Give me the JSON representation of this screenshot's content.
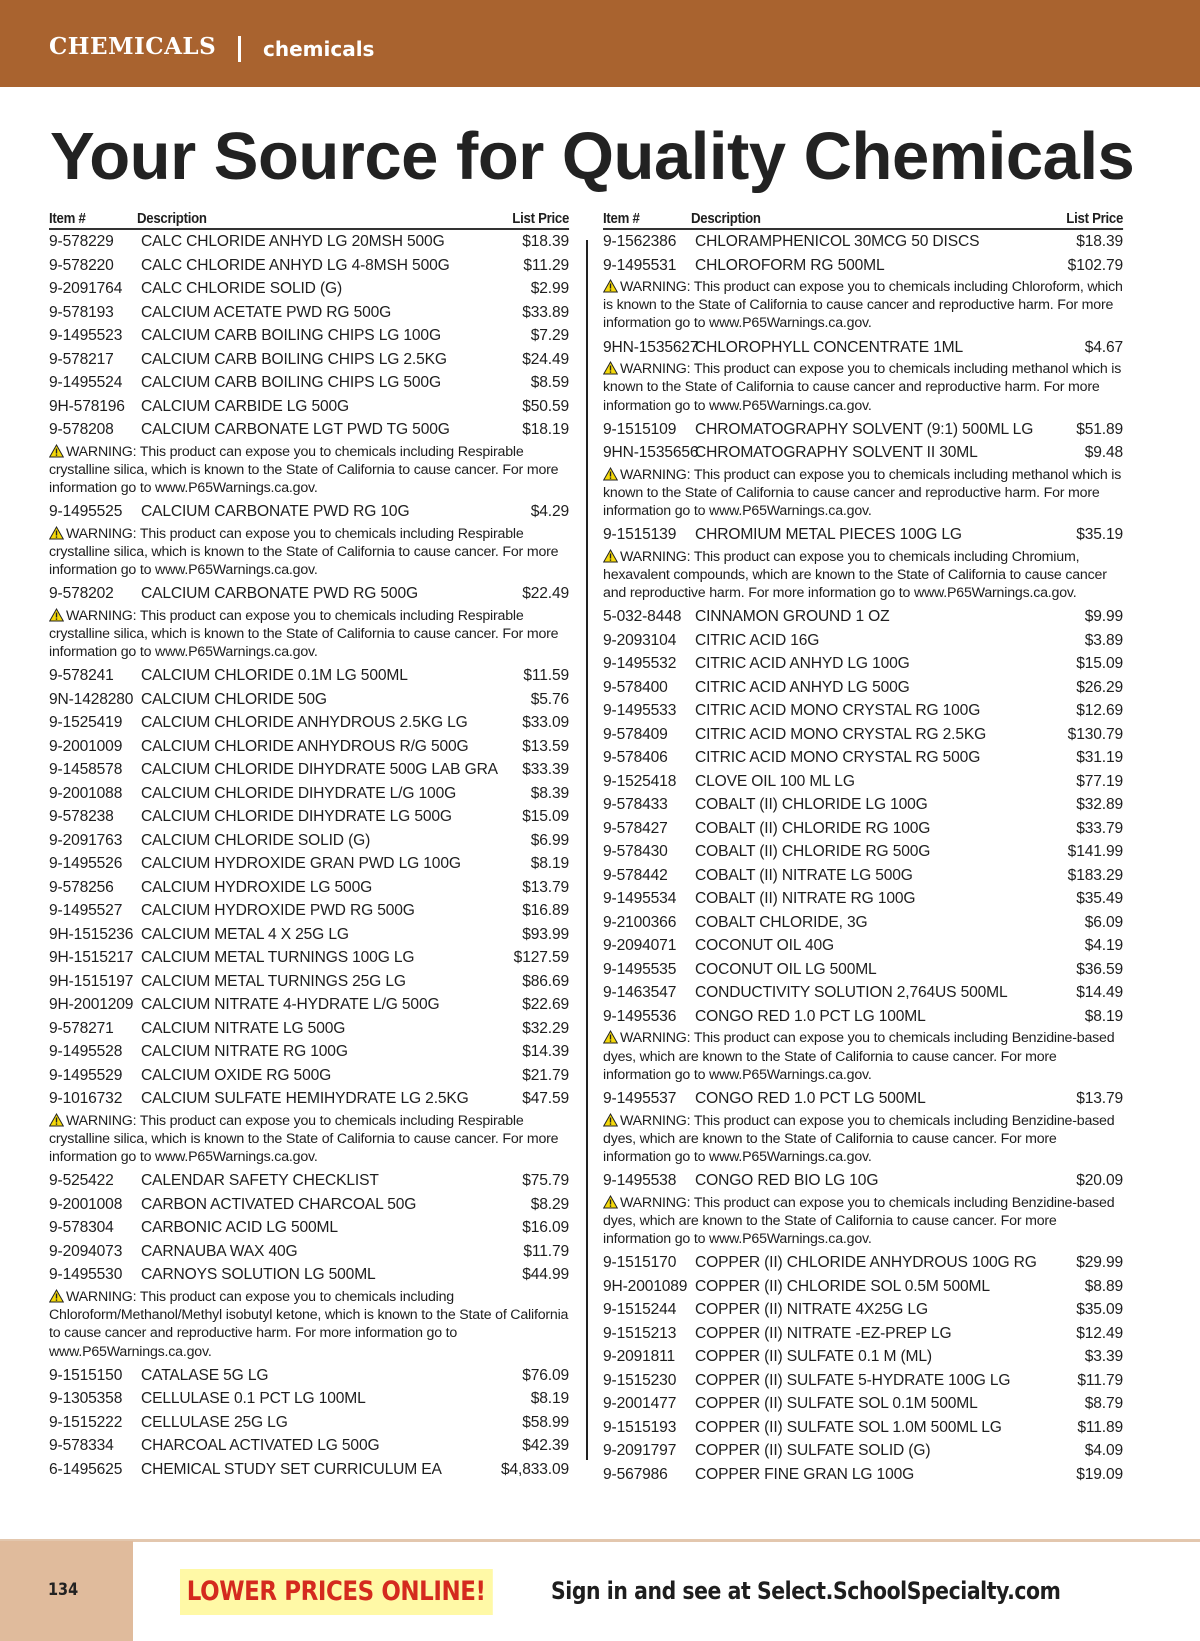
{
  "header": {
    "section": "CHEMICALS",
    "subsection": "chemicals",
    "accent": "#A9632F"
  },
  "title": "Your Source for Quality Chemicals",
  "columns_header": {
    "item": "Item #",
    "description": "Description",
    "price": "List Price"
  },
  "left": [
    {
      "id": "9-578229",
      "desc": "CALC CHLORIDE ANHYD LG 20MSH 500G",
      "price": "$18.39"
    },
    {
      "id": "9-578220",
      "desc": "CALC CHLORIDE ANHYD LG 4-8MSH 500G",
      "price": "$11.29"
    },
    {
      "id": "9-2091764",
      "desc": "CALC CHLORIDE SOLID (G)",
      "price": "$2.99"
    },
    {
      "id": "9-578193",
      "desc": "CALCIUM ACETATE PWD RG 500G",
      "price": "$33.89"
    },
    {
      "id": "9-1495523",
      "desc": "CALCIUM CARB BOILING CHIPS LG 100G",
      "price": "$7.29"
    },
    {
      "id": "9-578217",
      "desc": "CALCIUM CARB BOILING CHIPS LG 2.5KG",
      "price": "$24.49"
    },
    {
      "id": "9-1495524",
      "desc": "CALCIUM CARB BOILING CHIPS LG 500G",
      "price": "$8.59"
    },
    {
      "id": "9H-578196",
      "desc": "CALCIUM CARBIDE LG 500G",
      "price": "$50.59"
    },
    {
      "id": "9-578208",
      "desc": "CALCIUM CARBONATE LGT PWD TG 500G",
      "price": "$18.19"
    },
    {
      "warning": "WARNING: This product can expose you to chemicals including Respirable crystalline silica, which is known to the State of California to cause cancer. For more information go to www.P65Warnings.ca.gov."
    },
    {
      "id": "9-1495525",
      "desc": "CALCIUM CARBONATE PWD RG 10G",
      "price": "$4.29"
    },
    {
      "warning": "WARNING: This product can expose you to chemicals including Respirable crystalline silica, which is known to the State of California to cause cancer. For more information go to www.P65Warnings.ca.gov."
    },
    {
      "id": "9-578202",
      "desc": "CALCIUM CARBONATE PWD RG 500G",
      "price": "$22.49"
    },
    {
      "warning": "WARNING: This product can expose you to chemicals including Respirable crystalline silica, which is known to the State of California to cause cancer. For more information go to www.P65Warnings.ca.gov."
    },
    {
      "id": "9-578241",
      "desc": "CALCIUM CHLORIDE 0.1M LG 500ML",
      "price": "$11.59"
    },
    {
      "id": "9N-1428280",
      "desc": "CALCIUM CHLORIDE 50G",
      "price": "$5.76"
    },
    {
      "id": "9-1525419",
      "desc": "CALCIUM CHLORIDE ANHYDROUS 2.5KG LG",
      "price": "$33.09"
    },
    {
      "id": "9-2001009",
      "desc": "CALCIUM CHLORIDE ANHYDROUS R/G 500G",
      "price": "$13.59"
    },
    {
      "id": "9-1458578",
      "desc": "CALCIUM CHLORIDE DIHYDRATE 500G LAB GRADE",
      "price": "$33.39"
    },
    {
      "id": "9-2001088",
      "desc": "CALCIUM CHLORIDE DIHYDRATE L/G 100G",
      "price": "$8.39"
    },
    {
      "id": "9-578238",
      "desc": "CALCIUM CHLORIDE DIHYDRATE LG 500G",
      "price": "$15.09"
    },
    {
      "id": "9-2091763",
      "desc": "CALCIUM CHLORIDE SOLID (G)",
      "price": "$6.99"
    },
    {
      "id": "9-1495526",
      "desc": "CALCIUM HYDROXIDE GRAN PWD LG 100G",
      "price": "$8.19"
    },
    {
      "id": "9-578256",
      "desc": "CALCIUM HYDROXIDE LG 500G",
      "price": "$13.79"
    },
    {
      "id": "9-1495527",
      "desc": "CALCIUM HYDROXIDE PWD RG 500G",
      "price": "$16.89"
    },
    {
      "id": "9H-1515236",
      "desc": "CALCIUM METAL 4 X 25G LG",
      "price": "$93.99"
    },
    {
      "id": "9H-1515217",
      "desc": "CALCIUM METAL TURNINGS 100G LG",
      "price": "$127.59"
    },
    {
      "id": "9H-1515197",
      "desc": "CALCIUM METAL TURNINGS 25G LG",
      "price": "$86.69"
    },
    {
      "id": "9H-2001209",
      "desc": "CALCIUM NITRATE 4-HYDRATE L/G 500G",
      "price": "$22.69"
    },
    {
      "id": "9-578271",
      "desc": "CALCIUM NITRATE LG 500G",
      "price": "$32.29"
    },
    {
      "id": "9-1495528",
      "desc": "CALCIUM NITRATE RG 100G",
      "price": "$14.39"
    },
    {
      "id": "9-1495529",
      "desc": "CALCIUM OXIDE RG 500G",
      "price": "$21.79"
    },
    {
      "id": "9-1016732",
      "desc": "CALCIUM SULFATE HEMIHYDRATE LG 2.5KG",
      "price": "$47.59"
    },
    {
      "warning": "WARNING: This product can expose you to chemicals including Respirable crystalline silica, which is known to the State of California to cause cancer. For more information go to www.P65Warnings.ca.gov."
    },
    {
      "id": "9-525422",
      "desc": "CALENDAR SAFETY CHECKLIST",
      "price": "$75.79"
    },
    {
      "id": "9-2001008",
      "desc": "CARBON ACTIVATED CHARCOAL 50G",
      "price": "$8.29"
    },
    {
      "id": "9-578304",
      "desc": "CARBONIC ACID LG 500ML",
      "price": "$16.09"
    },
    {
      "id": "9-2094073",
      "desc": "CARNAUBA WAX 40G",
      "price": "$11.79"
    },
    {
      "id": "9-1495530",
      "desc": "CARNOYS SOLUTION LG 500ML",
      "price": "$44.99"
    },
    {
      "warning": "WARNING: This product can expose you to chemicals including Chloroform/Methanol/Methyl isobutyl ketone, which is known to the State of California to cause cancer and reproductive harm. For more information go to www.P65Warnings.ca.gov."
    },
    {
      "id": "9-1515150",
      "desc": "CATALASE 5G LG",
      "price": "$76.09"
    },
    {
      "id": "9-1305358",
      "desc": "CELLULASE 0.1 PCT LG 100ML",
      "price": "$8.19"
    },
    {
      "id": "9-1515222",
      "desc": "CELLULASE 25G LG",
      "price": "$58.99"
    },
    {
      "id": "9-578334",
      "desc": "CHARCOAL ACTIVATED LG 500G",
      "price": "$42.39"
    },
    {
      "id": "6-1495625",
      "desc": "CHEMICAL STUDY SET CURRICULUM EA",
      "price": "$4,833.09"
    }
  ],
  "right": [
    {
      "id": "9-1562386",
      "desc": "CHLORAMPHENICOL 30MCG 50 DISCS",
      "price": "$18.39"
    },
    {
      "id": "9-1495531",
      "desc": "CHLOROFORM RG 500ML",
      "price": "$102.79"
    },
    {
      "warning": "WARNING: This product can expose you to chemicals including Chloroform, which is known to the State of California to cause cancer and reproductive harm. For more information go to www.P65Warnings.ca.gov."
    },
    {
      "id": "9HN-1535627",
      "desc": "CHLOROPHYLL CONCENTRATE 1ML",
      "price": "$4.67"
    },
    {
      "warning": "WARNING: This product can expose you to chemicals including methanol which is known to the State of California to cause cancer and reproductive harm. For more information go to www.P65Warnings.ca.gov."
    },
    {
      "id": "9-1515109",
      "desc": "CHROMATOGRAPHY SOLVENT (9:1) 500ML LG",
      "price": "$51.89"
    },
    {
      "id": "9HN-1535656",
      "desc": "CHROMATOGRAPHY SOLVENT II 30ML",
      "price": "$9.48"
    },
    {
      "warning": "WARNING: This product can expose you to chemicals including methanol which is known to the State of California to cause cancer and reproductive harm. For more information go to www.P65Warnings.ca.gov."
    },
    {
      "id": "9-1515139",
      "desc": "CHROMIUM METAL PIECES 100G LG",
      "price": "$35.19"
    },
    {
      "warning": "WARNING: This product can expose you to chemicals including Chromium, hexavalent compounds, which are known to the State of California to cause cancer and reproductive harm. For more information go to www.P65Warnings.ca.gov."
    },
    {
      "id": "5-032-8448",
      "desc": "CINNAMON GROUND 1 OZ",
      "price": "$9.99"
    },
    {
      "id": "9-2093104",
      "desc": "CITRIC ACID 16G",
      "price": "$3.89"
    },
    {
      "id": "9-1495532",
      "desc": "CITRIC ACID ANHYD LG 100G",
      "price": "$15.09"
    },
    {
      "id": "9-578400",
      "desc": "CITRIC ACID ANHYD LG 500G",
      "price": "$26.29"
    },
    {
      "id": "9-1495533",
      "desc": "CITRIC ACID MONO CRYSTAL RG 100G",
      "price": "$12.69"
    },
    {
      "id": "9-578409",
      "desc": "CITRIC ACID MONO CRYSTAL RG 2.5KG",
      "price": "$130.79"
    },
    {
      "id": "9-578406",
      "desc": "CITRIC ACID MONO CRYSTAL RG 500G",
      "price": "$31.19"
    },
    {
      "id": "9-1525418",
      "desc": "CLOVE OIL 100 ML LG",
      "price": "$77.19"
    },
    {
      "id": "9-578433",
      "desc": "COBALT (II) CHLORIDE LG 100G",
      "price": "$32.89"
    },
    {
      "id": "9-578427",
      "desc": "COBALT (II) CHLORIDE RG 100G",
      "price": "$33.79"
    },
    {
      "id": "9-578430",
      "desc": "COBALT (II) CHLORIDE RG 500G",
      "price": "$141.99"
    },
    {
      "id": "9-578442",
      "desc": "COBALT (II) NITRATE LG 500G",
      "price": "$183.29"
    },
    {
      "id": "9-1495534",
      "desc": "COBALT (II) NITRATE RG 100G",
      "price": "$35.49"
    },
    {
      "id": "9-2100366",
      "desc": "COBALT CHLORIDE, 3G",
      "price": "$6.09"
    },
    {
      "id": "9-2094071",
      "desc": "COCONUT OIL 40G",
      "price": "$4.19"
    },
    {
      "id": "9-1495535",
      "desc": "COCONUT OIL LG 500ML",
      "price": "$36.59"
    },
    {
      "id": "9-1463547",
      "desc": "CONDUCTIVITY SOLUTION 2,764US 500ML",
      "price": "$14.49"
    },
    {
      "id": "9-1495536",
      "desc": "CONGO RED 1.0 PCT LG 100ML",
      "price": "$8.19"
    },
    {
      "warning": "WARNING: This product can expose you to chemicals including Benzidine-based dyes, which are known to the State of California to cause cancer. For more information go to www.P65Warnings.ca.gov."
    },
    {
      "id": "9-1495537",
      "desc": "CONGO RED 1.0 PCT LG 500ML",
      "price": "$13.79"
    },
    {
      "warning": "WARNING: This product can expose you to chemicals including Benzidine-based dyes, which are known to the State of California to cause cancer. For more information go to www.P65Warnings.ca.gov."
    },
    {
      "id": "9-1495538",
      "desc": "CONGO RED BIO LG 10G",
      "price": "$20.09"
    },
    {
      "warning": "WARNING: This product can expose you to chemicals including Benzidine-based dyes, which are known to the State of California to cause cancer. For more information go to www.P65Warnings.ca.gov."
    },
    {
      "id": "9-1515170",
      "desc": "COPPER (II) CHLORIDE ANHYDROUS 100G RG",
      "price": "$29.99"
    },
    {
      "id": "9H-2001089",
      "desc": "COPPER (II) CHLORIDE SOL 0.5M 500ML",
      "price": "$8.89"
    },
    {
      "id": "9-1515244",
      "desc": "COPPER (II) NITRATE 4X25G LG",
      "price": "$35.09"
    },
    {
      "id": "9-1515213",
      "desc": "COPPER (II) NITRATE -EZ-PREP LG",
      "price": "$12.49"
    },
    {
      "id": "9-2091811",
      "desc": "COPPER (II) SULFATE 0.1 M (ML)",
      "price": "$3.39"
    },
    {
      "id": "9-1515230",
      "desc": "COPPER (II) SULFATE 5-HYDRATE 100G LG",
      "price": "$11.79"
    },
    {
      "id": "9-2001477",
      "desc": "COPPER (II) SULFATE SOL 0.1M 500ML",
      "price": "$8.79"
    },
    {
      "id": "9-1515193",
      "desc": "COPPER (II) SULFATE SOL 1.0M 500ML LG",
      "price": "$11.89"
    },
    {
      "id": "9-2091797",
      "desc": "COPPER (II) SULFATE SOLID (G)",
      "price": "$4.09"
    },
    {
      "id": "9-567986",
      "desc": "COPPER FINE GRAN LG 100G",
      "price": "$19.09"
    }
  ],
  "footer": {
    "page_number": "134",
    "promo": "LOWER PRICES ONLINE!",
    "sign_in": "Sign in and see at Select.SchoolSpecialty.com",
    "promo_color": "#D42A1E",
    "highlight": "#FFF9A6"
  },
  "icons": {
    "warning": "warning-triangle-icon"
  }
}
